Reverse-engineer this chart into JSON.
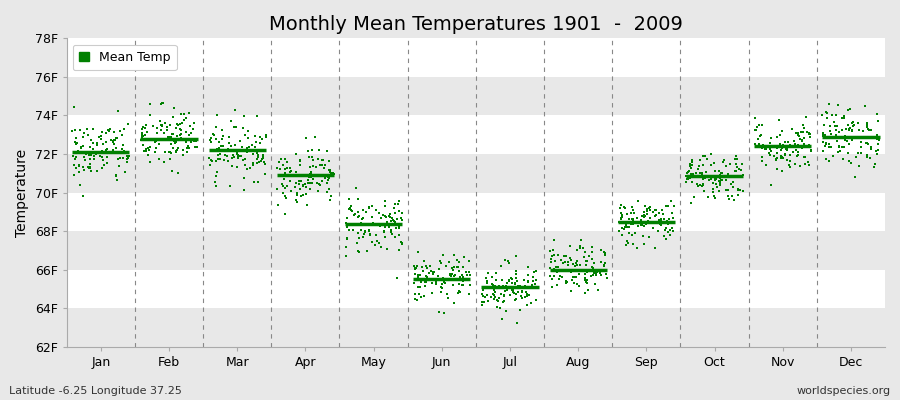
{
  "title": "Monthly Mean Temperatures 1901  -  2009",
  "ylabel": "Temperature",
  "ylim": [
    62,
    78
  ],
  "yticks": [
    62,
    64,
    66,
    68,
    70,
    72,
    74,
    76,
    78
  ],
  "ytick_labels": [
    "62F",
    "64F",
    "66F",
    "68F",
    "70F",
    "72F",
    "74F",
    "76F",
    "78F"
  ],
  "months": [
    "Jan",
    "Feb",
    "Mar",
    "Apr",
    "May",
    "Jun",
    "Jul",
    "Aug",
    "Sep",
    "Oct",
    "Nov",
    "Dec"
  ],
  "monthly_means": [
    72.1,
    72.8,
    72.2,
    70.9,
    68.35,
    65.5,
    65.1,
    66.0,
    68.5,
    70.85,
    72.4,
    72.9
  ],
  "monthly_stds": [
    0.85,
    0.85,
    0.75,
    0.75,
    0.8,
    0.6,
    0.65,
    0.6,
    0.6,
    0.65,
    0.7,
    0.8
  ],
  "n_years": 109,
  "dot_color": "#008000",
  "plot_bg": "#ffffff",
  "band_color": "#e8e8e8",
  "fig_bg": "#e8e8e8",
  "title_fontsize": 14,
  "axis_fontsize": 10,
  "tick_fontsize": 9,
  "legend_label": "Mean Temp",
  "bottom_left_text": "Latitude -6.25 Longitude 37.25",
  "bottom_right_text": "worldspecies.org",
  "seed": 42
}
